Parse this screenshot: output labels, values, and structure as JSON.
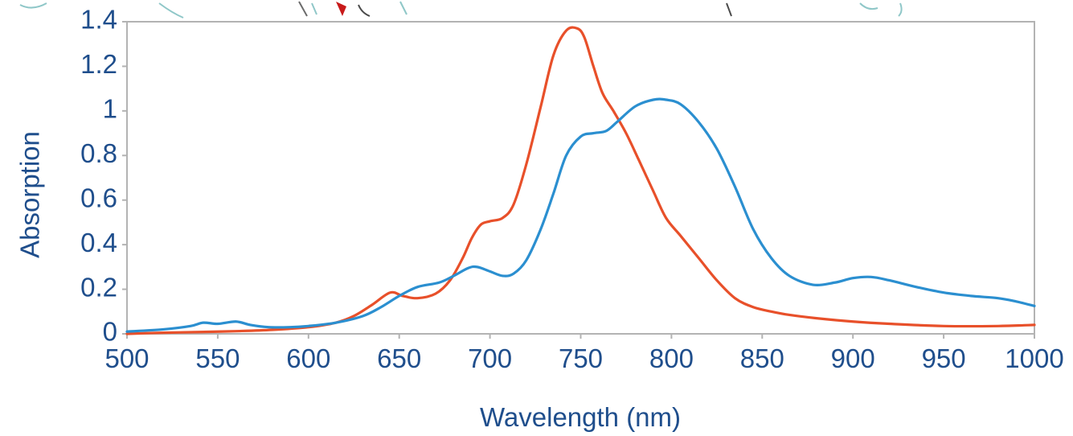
{
  "chart_data": {
    "type": "line",
    "title": "",
    "xlabel": "Wavelength (nm)",
    "ylabel": "Absorption",
    "xlim": [
      500,
      1000
    ],
    "ylim": [
      0,
      1.4
    ],
    "xticks": [
      500,
      550,
      600,
      650,
      700,
      750,
      800,
      850,
      900,
      950,
      1000
    ],
    "yticks": [
      0,
      0.2,
      0.4,
      0.6,
      0.8,
      1,
      1.2,
      1.4
    ],
    "xtick_labels": [
      "500",
      "550",
      "600",
      "650",
      "700",
      "750",
      "800",
      "850",
      "900",
      "950",
      "1000"
    ],
    "ytick_labels": [
      "0",
      "0.2",
      "0.4",
      "0.6",
      "0.8",
      "1",
      "1.2",
      "1.4"
    ],
    "grid": false,
    "legend": "none",
    "series": [
      {
        "color": "#e8502a",
        "x": [
          500,
          520,
          540,
          560,
          580,
          600,
          615,
          625,
          635,
          645,
          652,
          660,
          670,
          678,
          685,
          690,
          695,
          700,
          707,
          713,
          720,
          728,
          735,
          742,
          748,
          752,
          757,
          762,
          768,
          775,
          782,
          790,
          797,
          805,
          815,
          825,
          835,
          845,
          855,
          865,
          880,
          900,
          920,
          950,
          980,
          1000
        ],
        "y": [
          0.0,
          0.005,
          0.008,
          0.012,
          0.018,
          0.03,
          0.05,
          0.08,
          0.13,
          0.185,
          0.17,
          0.16,
          0.18,
          0.24,
          0.34,
          0.43,
          0.49,
          0.505,
          0.52,
          0.58,
          0.76,
          1.02,
          1.25,
          1.36,
          1.37,
          1.33,
          1.2,
          1.08,
          1.0,
          0.9,
          0.78,
          0.64,
          0.52,
          0.44,
          0.34,
          0.24,
          0.16,
          0.12,
          0.1,
          0.085,
          0.07,
          0.055,
          0.045,
          0.035,
          0.035,
          0.04
        ]
      },
      {
        "color": "#2b8fd0",
        "x": [
          500,
          520,
          535,
          542,
          550,
          560,
          568,
          578,
          590,
          600,
          615,
          630,
          640,
          650,
          660,
          672,
          680,
          688,
          693,
          700,
          707,
          713,
          720,
          728,
          735,
          742,
          750,
          757,
          764,
          770,
          780,
          790,
          797,
          805,
          815,
          825,
          835,
          845,
          855,
          865,
          878,
          890,
          900,
          910,
          920,
          935,
          950,
          965,
          980,
          990,
          1000
        ],
        "y": [
          0.01,
          0.02,
          0.035,
          0.05,
          0.045,
          0.055,
          0.04,
          0.03,
          0.03,
          0.035,
          0.05,
          0.08,
          0.12,
          0.17,
          0.21,
          0.23,
          0.26,
          0.295,
          0.3,
          0.28,
          0.26,
          0.27,
          0.33,
          0.47,
          0.63,
          0.8,
          0.885,
          0.9,
          0.91,
          0.95,
          1.02,
          1.05,
          1.05,
          1.03,
          0.95,
          0.83,
          0.66,
          0.47,
          0.34,
          0.26,
          0.22,
          0.23,
          0.25,
          0.255,
          0.24,
          0.21,
          0.185,
          0.17,
          0.16,
          0.145,
          0.125
        ]
      }
    ]
  }
}
